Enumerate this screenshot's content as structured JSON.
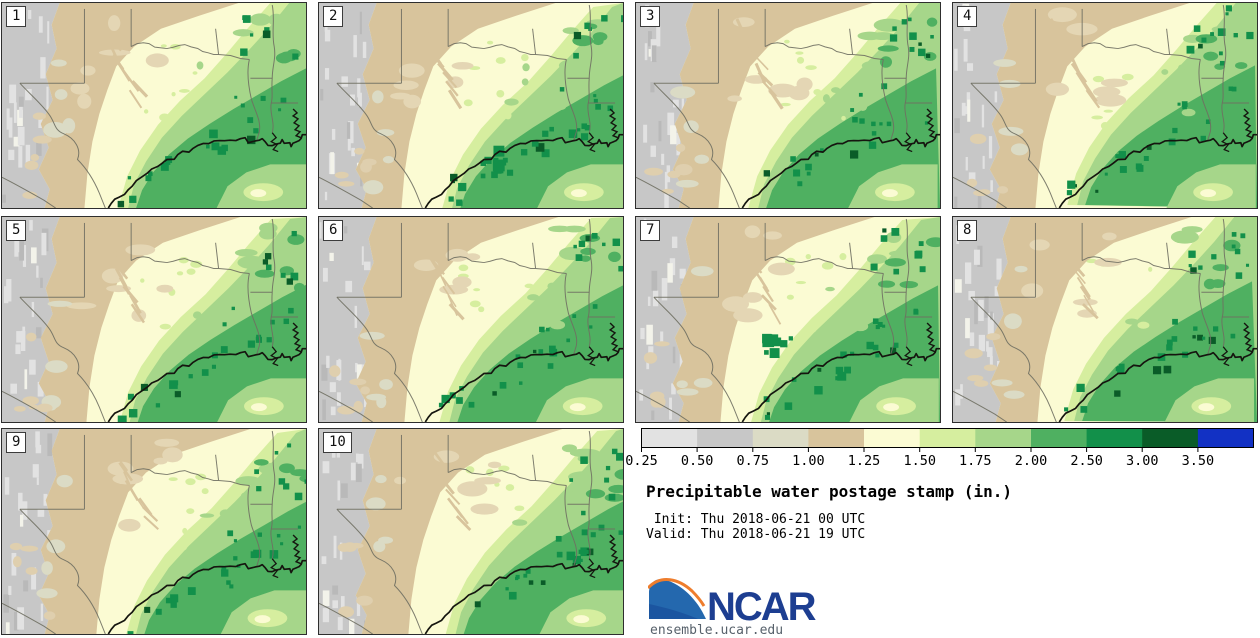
{
  "figure": {
    "title": "Precipitable water postage stamp (in.)",
    "init_label": " Init: Thu 2018-06-21 00 UTC",
    "valid_label": "Valid: Thu 2018-06-21 19 UTC",
    "logo_text": "NCAR",
    "site": "ensemble.ucar.edu"
  },
  "panels": [
    {
      "label": "1"
    },
    {
      "label": "2"
    },
    {
      "label": "3"
    },
    {
      "label": "4"
    },
    {
      "label": "5"
    },
    {
      "label": "6"
    },
    {
      "label": "7"
    },
    {
      "label": "8"
    },
    {
      "label": "9"
    },
    {
      "label": "10"
    }
  ],
  "colorbar": {
    "ticks": [
      "0.25",
      "0.50",
      "0.75",
      "1.00",
      "1.25",
      "1.50",
      "1.75",
      "2.00",
      "2.50",
      "3.00",
      "3.50"
    ],
    "colors": [
      "#e2e2e2",
      "#c7c7c7",
      "#dbdbc5",
      "#d8c49c",
      "#fbfbd3",
      "#d6ee9f",
      "#a6d68a",
      "#4fb061",
      "#12904a",
      "#0a5c28",
      "#1231c4"
    ],
    "frame_color": "#000000"
  },
  "map_style": {
    "border_line_color": "#6f6f62",
    "coast_line_color": "#15150f",
    "panel_frame_color": "#2e2e2e"
  }
}
